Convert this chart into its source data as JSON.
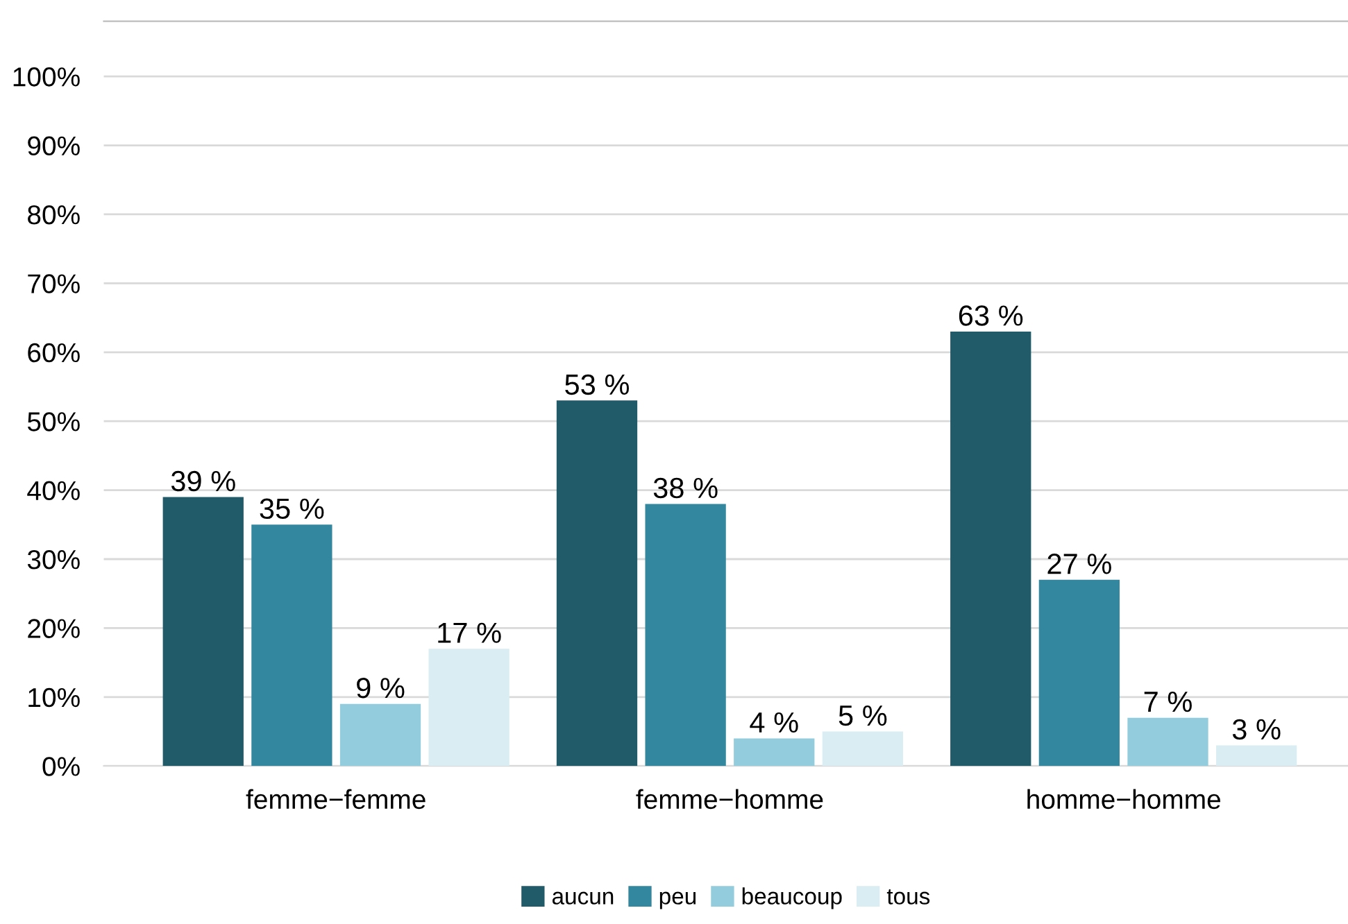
{
  "chart_data": {
    "type": "bar",
    "categories": [
      "femme−femme",
      "femme−homme",
      "homme−homme"
    ],
    "series": [
      {
        "name": "aucun",
        "color": "#215a69",
        "values": [
          39,
          53,
          63
        ],
        "value_labels": [
          "39 %",
          "53 %",
          "63 %"
        ]
      },
      {
        "name": "peu",
        "color": "#33879e",
        "values": [
          35,
          38,
          27
        ],
        "value_labels": [
          "35 %",
          "38 %",
          "27 %"
        ]
      },
      {
        "name": "beaucoup",
        "color": "#93cddd",
        "values": [
          9,
          4,
          7
        ],
        "value_labels": [
          "9 %",
          "4 %",
          "7 %"
        ]
      },
      {
        "name": "tous",
        "color": "#daedf3",
        "values": [
          17,
          5,
          3
        ],
        "value_labels": [
          "17 %",
          "5 %",
          "3 %"
        ]
      }
    ],
    "ylim": [
      0,
      108
    ],
    "yticks": [
      {
        "value": 0,
        "label": "0%"
      },
      {
        "value": 10,
        "label": "10%"
      },
      {
        "value": 20,
        "label": "20%"
      },
      {
        "value": 30,
        "label": "30%"
      },
      {
        "value": 40,
        "label": "40%"
      },
      {
        "value": 50,
        "label": "50%"
      },
      {
        "value": 60,
        "label": "60%"
      },
      {
        "value": 70,
        "label": "70%"
      },
      {
        "value": 80,
        "label": "80%"
      },
      {
        "value": 90,
        "label": "90%"
      },
      {
        "value": 100,
        "label": "100%"
      }
    ],
    "grid": "y",
    "legend": "bottom"
  }
}
